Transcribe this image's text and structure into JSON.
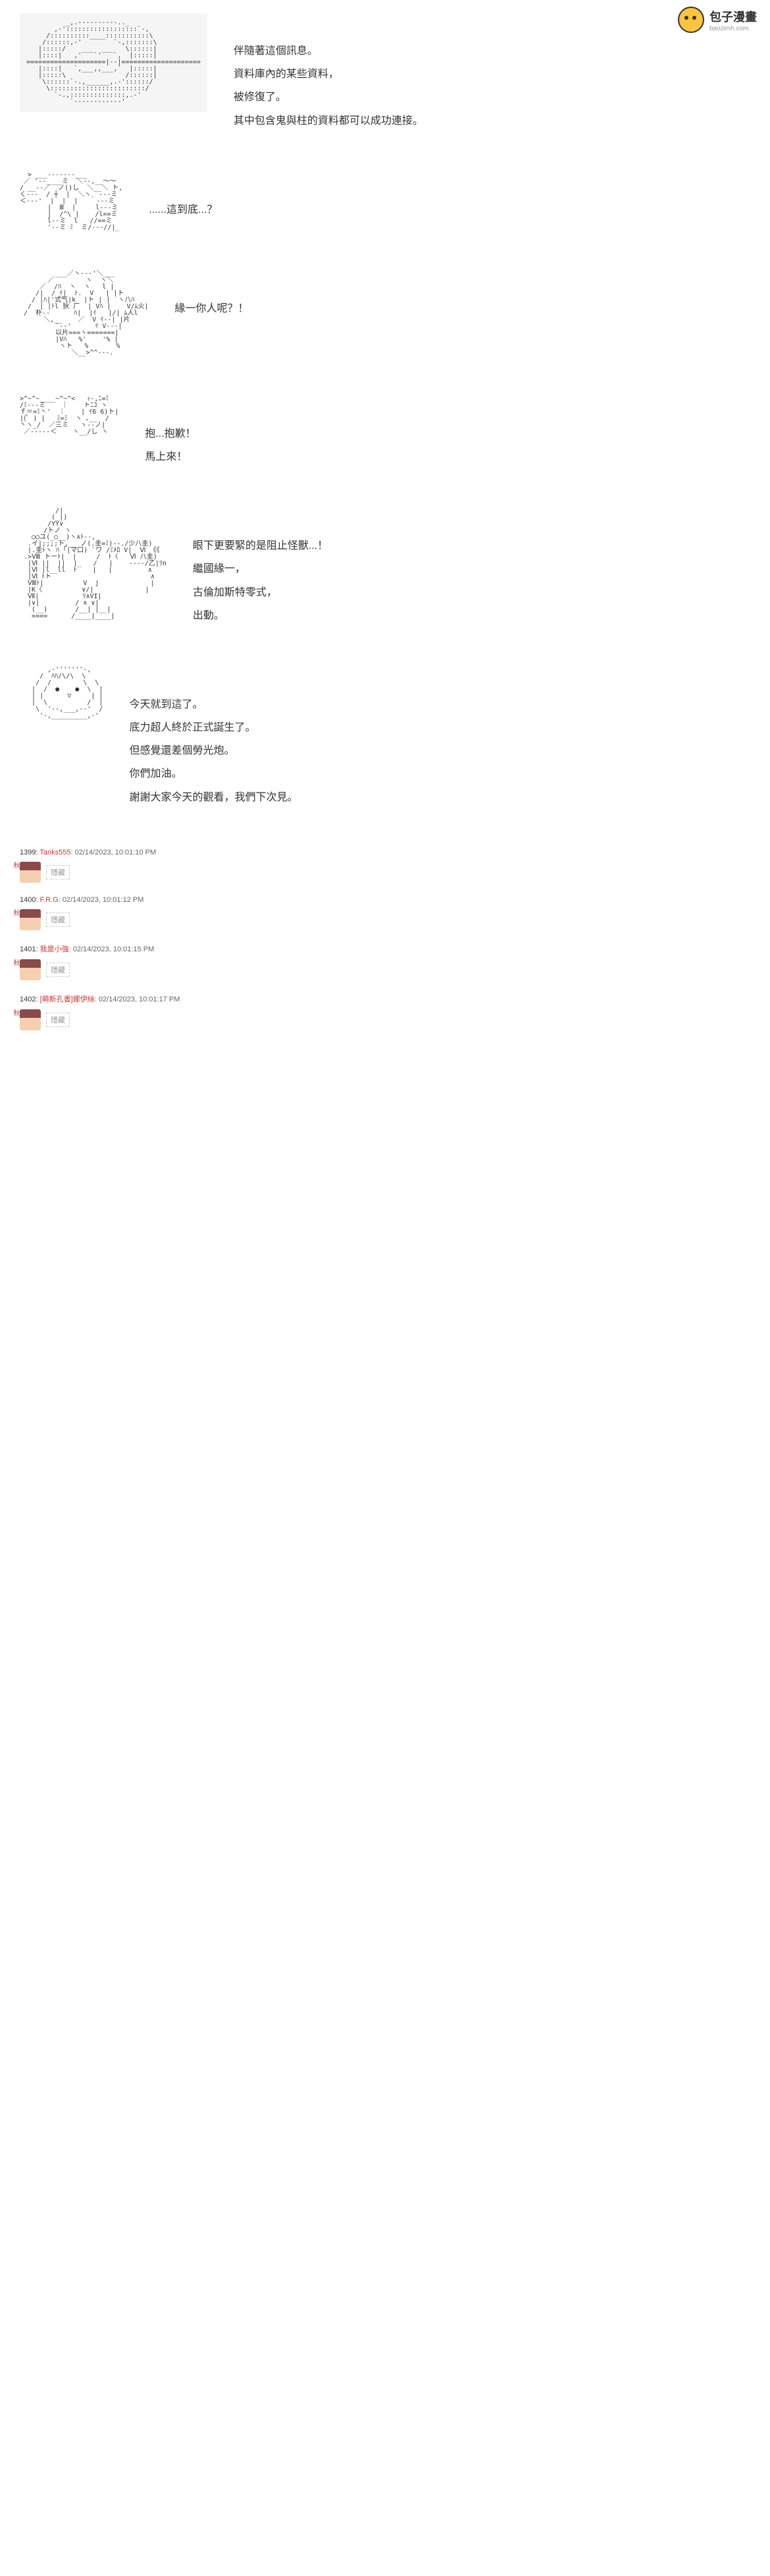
{
  "logo": {
    "cn": "包子漫畫",
    "en": "baozimh.com"
  },
  "panels": [
    {
      "art": "          _,.----------.._\n       ,-'::::::::::::::::::`-,\n     /::::::::::____:::::::::::\\\n    /::::::,-'        `-,:::::::\\\n   |:::::/    ___  ___   \\::::::|\n   |::::|   ,'   `'   `,  |:::::|\n====================|--|====================\n   |::::|   `,___,,___,`  |:::::|\n   |:::::\\               /::::::|\n    \\::::::`-.,______,.-'::::::/\n     \\::::::::::::::::::::::::/\n       `-.,::::::::::::::,.-'\n           `------------'",
      "box": true,
      "lines": [
        "伴隨著這個訊息。",
        "資料庫內的某些資料，",
        "被修復了。",
        "其中包含鬼與柱的資料都可以成功連接。"
      ]
    },
    {
      "art": "  > ___-------___\n ／ '--____ミ  ＼--,__～～\n/ __--／  ノ()し  ＼__＼ ト,\nく---  / ┼  |  ＼ヽ  ---ミ\n＜---'  |  |  |   ｀---ミ\n       |  Ⅲ  |     l---ミ\n       |  /^\\ |    /l==ミ\n       l--ミ  l   //==ミ\n       '--ミ ﾐ  ミ/---//|_",
      "lines": [
        "......這到底...？"
      ]
    },
    {
      "art": "         ___／ヽ---'＼___\n       ／        ヽ  ヽ＼\n     ／  /ﾊ  ヽ  ヽ   l |\n    /|  / ｲ|  ﾄ.  V   | |ト\n   / |ﾊ|'式气|k  |ト | |  ヽ八ﾊ\n  /  | |ﾄl 狄 厂  | Vﾊ |    V/ﾑ火|\n /  朴--      ﾊ|  |ｲ   |/| ﾑ人l\n      ＼,__    ／  V ｲ--| |片\n         `--'      ｲ V---|\n         以片===ヽ=======|\n         |Vﾊ   %'    '% |\n          ヽト   %       %\n             ＼__>^^---.",
      "lines": [
        "緣一你人呢？！"
      ]
    },
    {
      "art": ">^~^~____~^~^<   ｨ-,ﾆ=ﾐ\n/ﾐ---ミ    ｜    トﾆｺ ヽ\nｆ＝=ﾐ丶'  ｜    | ｲ6 6)ト|\n|(ﾟ ) |   ﾐ=ﾐ  ヽ ､__  /\n丶ヽ_/  ／三ミ   ヽ--ノ|\n ／-----＜    ヽ__/し ヽ",
      "lines": [
        "抱...抱歉！",
        "馬上來！"
      ]
    },
    {
      "art": "         /|\n        (_|)\n       /YY∨\n      /トノ ヽ\n   ○○ユ(_○__)ヽ∧ﾄ--,\n  .イ|;;;;ト,__ ノ(.圭=ﾐ)--./少八圭) \n  |.圭ﾄヽ ﾊ ｢|マ口) `ワ /ﾐﾒﾛ V|  Ⅵ 《《\n .>Ⅷ トーﾄ|  |     /  ﾄ〈   Ⅵ 八圭)\n  |Ⅵ ||  ||  |_   /   |    ----/乙|ﾘn\n  |Ⅵ |l__ll  ﾄ    |   |         ∧\n  |Ⅵ ﾄト                         ∧\n  Ⅷﾄ|          V  j             |\n  |K〈          ∨/|             |\n  Ⅶ|           ﾘ∧VI|\n  |∨|         / ∧ ∨|\n   (__)       /__| |__|\n   ====      /____|____|",
      "lines": [
        "眼下更要緊的是阻止怪獸...！",
        "繼國緣一，",
        "古倫加斯特零式，",
        "出動。"
      ]
    },
    {
      "art": "       ,-'''''''-,\n     /  ﾊﾊ/\\/\\  \\\n    /  /        \\  \\\n   |  /  ●    ●  \\  |\n   | |      ▽     | |\n   |  \\          /  |\n    \\  '--,___,--'  /\n     '-,_________,-'",
      "lines": [
        "今天就到這了。",
        "底力超人終於正式誕生了。",
        "但感覺還差個勞光炮。",
        "你們加油。",
        "謝謝大家今天的觀看，我們下次見。"
      ]
    }
  ],
  "comments": [
    {
      "id": "1399",
      "user": "Tanks555",
      "date": "02/14/2023, 10:01:10 PM"
    },
    {
      "id": "1400",
      "user": "F.R.G",
      "date": "02/14/2023, 10:01:12 PM"
    },
    {
      "id": "1401",
      "user": "我是小強",
      "date": "02/14/2023, 10:01:15 PM"
    },
    {
      "id": "1402",
      "user": "[萌新孔書]娜伊絲",
      "date": "02/14/2023, 10:01:17 PM"
    }
  ],
  "hidden_label": "隱藏"
}
